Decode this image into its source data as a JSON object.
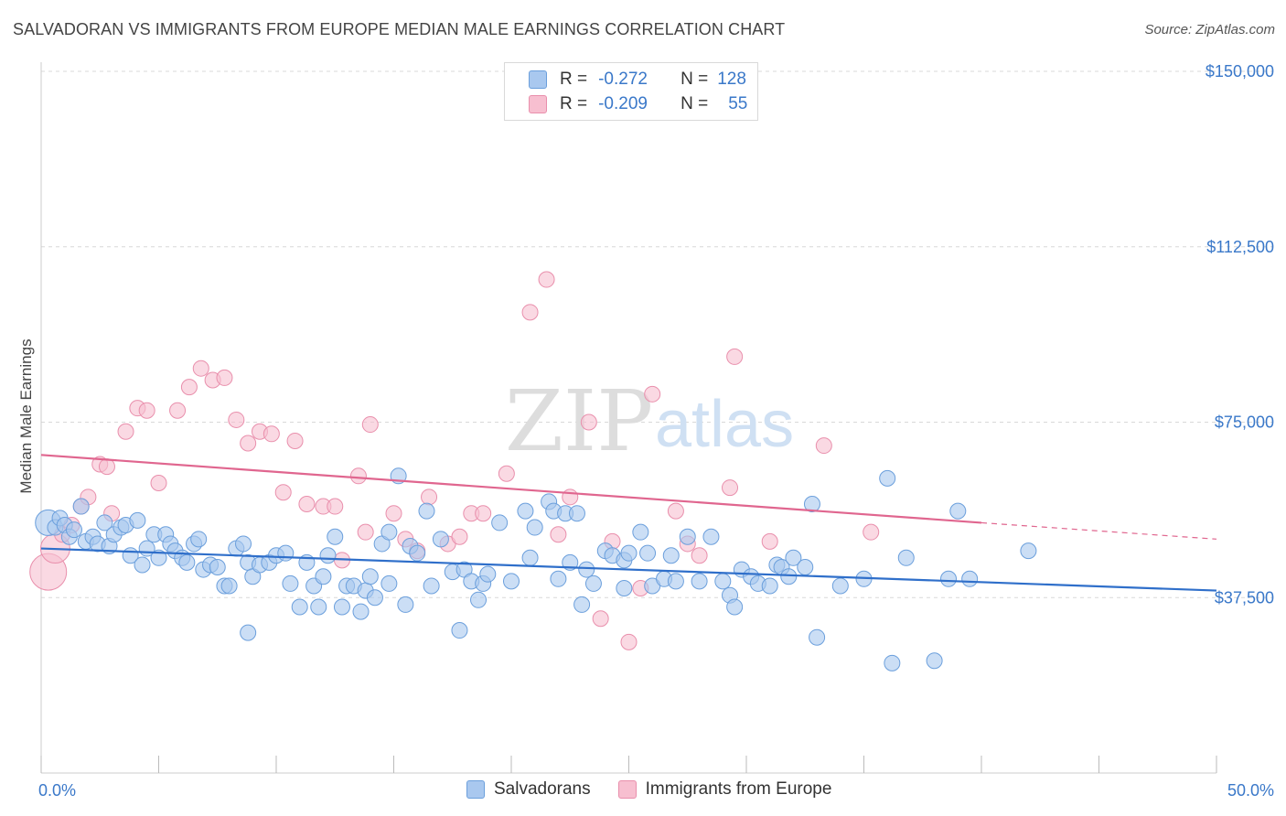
{
  "header": {
    "title": "SALVADORAN VS IMMIGRANTS FROM EUROPE MEDIAN MALE EARNINGS CORRELATION CHART",
    "source": "Source: ZipAtlas.com"
  },
  "legend": {
    "rows": [
      {
        "r_label": "R =",
        "r_value": "-0.272",
        "n_label": "N =",
        "n_value": "128"
      },
      {
        "r_label": "R =",
        "r_value": "-0.209",
        "n_label": "N =",
        "n_value": "55"
      }
    ]
  },
  "bottom_legend": {
    "items": [
      {
        "label": "Salvadorans"
      },
      {
        "label": "Immigrants from Europe"
      }
    ]
  },
  "watermark": {
    "zip": "ZIP",
    "atlas": "atlas"
  },
  "colors": {
    "blue_fill": "#a9c8ef",
    "blue_stroke": "#6b9fdc",
    "blue_line": "#2f6fca",
    "pink_fill": "#f7bfd0",
    "pink_stroke": "#e98fac",
    "pink_line": "#e0668f",
    "tick_text": "#3a78c9",
    "grid": "#d8d8d8"
  },
  "chart_data": {
    "type": "scatter",
    "title": "SALVADORAN VS IMMIGRANTS FROM EUROPE MEDIAN MALE EARNINGS CORRELATION CHART",
    "xlabel": "",
    "ylabel": "Median Male Earnings",
    "xlim": [
      0,
      50
    ],
    "ylim": [
      0,
      152000
    ],
    "x_tick_labels": [
      "0.0%",
      "50.0%"
    ],
    "y_ticks": [
      37500,
      75000,
      112500,
      150000
    ],
    "y_tick_labels": [
      "$37,500",
      "$75,000",
      "$112,500",
      "$150,000"
    ],
    "grid": true,
    "legend_position": "top-center",
    "series": [
      {
        "name": "Salvadorans",
        "color": "#a9c8ef",
        "trend": {
          "x": [
            0,
            50
          ],
          "y": [
            48000,
            39000
          ]
        },
        "points": [
          [
            0.3,
            53500
          ],
          [
            0.6,
            52500
          ],
          [
            0.8,
            54500
          ],
          [
            1.0,
            53000
          ],
          [
            1.2,
            50500
          ],
          [
            1.4,
            52000
          ],
          [
            1.7,
            57000
          ],
          [
            1.9,
            49500
          ],
          [
            2.2,
            50500
          ],
          [
            2.4,
            49000
          ],
          [
            2.7,
            53500
          ],
          [
            2.9,
            48500
          ],
          [
            3.1,
            51000
          ],
          [
            3.4,
            52500
          ],
          [
            3.6,
            53000
          ],
          [
            3.8,
            46500
          ],
          [
            4.1,
            54000
          ],
          [
            4.3,
            44500
          ],
          [
            4.5,
            48000
          ],
          [
            4.8,
            51000
          ],
          [
            5.0,
            46000
          ],
          [
            5.3,
            51000
          ],
          [
            5.5,
            49000
          ],
          [
            5.7,
            47500
          ],
          [
            6.0,
            46000
          ],
          [
            6.2,
            45000
          ],
          [
            6.5,
            49000
          ],
          [
            6.7,
            50000
          ],
          [
            6.9,
            43500
          ],
          [
            7.2,
            44500
          ],
          [
            7.5,
            44000
          ],
          [
            7.8,
            40000
          ],
          [
            8.0,
            40000
          ],
          [
            8.3,
            48000
          ],
          [
            8.6,
            49000
          ],
          [
            8.8,
            45000
          ],
          [
            8.8,
            30000
          ],
          [
            9.0,
            42000
          ],
          [
            9.3,
            44500
          ],
          [
            9.7,
            45000
          ],
          [
            10.0,
            46500
          ],
          [
            10.4,
            47000
          ],
          [
            10.6,
            40500
          ],
          [
            11.0,
            35500
          ],
          [
            11.3,
            45000
          ],
          [
            11.6,
            40000
          ],
          [
            11.8,
            35500
          ],
          [
            12.0,
            42000
          ],
          [
            12.2,
            46500
          ],
          [
            12.5,
            50500
          ],
          [
            12.8,
            35500
          ],
          [
            13.0,
            40000
          ],
          [
            13.3,
            40000
          ],
          [
            13.6,
            34500
          ],
          [
            13.8,
            39000
          ],
          [
            14.0,
            42000
          ],
          [
            14.2,
            37500
          ],
          [
            14.5,
            49000
          ],
          [
            14.8,
            51500
          ],
          [
            14.8,
            40500
          ],
          [
            15.2,
            63500
          ],
          [
            15.5,
            36000
          ],
          [
            15.7,
            48500
          ],
          [
            16.0,
            47000
          ],
          [
            16.4,
            56000
          ],
          [
            16.6,
            40000
          ],
          [
            17.0,
            50000
          ],
          [
            17.5,
            43000
          ],
          [
            17.8,
            30500
          ],
          [
            18.0,
            43500
          ],
          [
            18.3,
            41000
          ],
          [
            18.6,
            37000
          ],
          [
            18.8,
            40500
          ],
          [
            19.0,
            42500
          ],
          [
            19.5,
            53500
          ],
          [
            20.0,
            41000
          ],
          [
            20.6,
            56000
          ],
          [
            20.8,
            46000
          ],
          [
            21.0,
            52500
          ],
          [
            21.6,
            58000
          ],
          [
            21.8,
            56000
          ],
          [
            22.0,
            41500
          ],
          [
            22.3,
            55500
          ],
          [
            22.5,
            45000
          ],
          [
            22.8,
            55500
          ],
          [
            23.0,
            36000
          ],
          [
            23.2,
            43500
          ],
          [
            23.5,
            40500
          ],
          [
            24.0,
            47500
          ],
          [
            24.3,
            46500
          ],
          [
            24.8,
            45500
          ],
          [
            24.8,
            39500
          ],
          [
            25.0,
            47000
          ],
          [
            25.5,
            51500
          ],
          [
            25.8,
            47000
          ],
          [
            26.0,
            40000
          ],
          [
            26.5,
            41500
          ],
          [
            26.8,
            46500
          ],
          [
            27.0,
            41000
          ],
          [
            27.5,
            50500
          ],
          [
            28.0,
            41000
          ],
          [
            28.5,
            50500
          ],
          [
            29.0,
            41000
          ],
          [
            29.3,
            38000
          ],
          [
            29.5,
            35500
          ],
          [
            29.8,
            43500
          ],
          [
            30.2,
            42000
          ],
          [
            30.5,
            40500
          ],
          [
            31.0,
            40000
          ],
          [
            31.3,
            44500
          ],
          [
            31.5,
            44000
          ],
          [
            31.8,
            42000
          ],
          [
            32.0,
            46000
          ],
          [
            32.5,
            44000
          ],
          [
            33.0,
            29000
          ],
          [
            32.8,
            57500
          ],
          [
            34.0,
            40000
          ],
          [
            35.0,
            41500
          ],
          [
            36.0,
            63000
          ],
          [
            36.2,
            23500
          ],
          [
            36.8,
            46000
          ],
          [
            38.0,
            24000
          ],
          [
            38.6,
            41500
          ],
          [
            39.0,
            56000
          ],
          [
            39.5,
            41500
          ],
          [
            42.0,
            47500
          ]
        ]
      },
      {
        "name": "Immigrants from Europe",
        "color": "#f7bfd0",
        "trend": {
          "x": [
            0,
            40
          ],
          "y": [
            68000,
            53500
          ]
        },
        "trend_dashed": {
          "x": [
            40,
            50
          ],
          "y": [
            53500,
            50000
          ]
        },
        "points": [
          [
            0.3,
            43000
          ],
          [
            0.6,
            48000
          ],
          [
            0.9,
            51000
          ],
          [
            1.3,
            53000
          ],
          [
            1.7,
            57000
          ],
          [
            2.0,
            59000
          ],
          [
            2.5,
            66000
          ],
          [
            2.8,
            65500
          ],
          [
            3.0,
            55500
          ],
          [
            3.6,
            73000
          ],
          [
            4.1,
            78000
          ],
          [
            4.5,
            77500
          ],
          [
            5.0,
            62000
          ],
          [
            5.8,
            77500
          ],
          [
            6.3,
            82500
          ],
          [
            6.8,
            86500
          ],
          [
            7.3,
            84000
          ],
          [
            7.8,
            84500
          ],
          [
            8.3,
            75500
          ],
          [
            8.8,
            70500
          ],
          [
            9.3,
            73000
          ],
          [
            9.8,
            72500
          ],
          [
            10.3,
            60000
          ],
          [
            10.8,
            71000
          ],
          [
            11.3,
            57500
          ],
          [
            12.0,
            57000
          ],
          [
            12.5,
            57000
          ],
          [
            12.8,
            45500
          ],
          [
            13.5,
            63500
          ],
          [
            13.8,
            51500
          ],
          [
            14.0,
            74500
          ],
          [
            15.0,
            55500
          ],
          [
            15.5,
            50000
          ],
          [
            16.0,
            47500
          ],
          [
            16.5,
            59000
          ],
          [
            17.3,
            49000
          ],
          [
            17.8,
            50500
          ],
          [
            18.3,
            55500
          ],
          [
            18.8,
            55500
          ],
          [
            19.8,
            64000
          ],
          [
            20.8,
            98500
          ],
          [
            21.5,
            105500
          ],
          [
            22.0,
            51000
          ],
          [
            22.5,
            59000
          ],
          [
            23.3,
            75000
          ],
          [
            23.8,
            33000
          ],
          [
            24.3,
            49500
          ],
          [
            25.0,
            28000
          ],
          [
            25.5,
            39500
          ],
          [
            26.0,
            81000
          ],
          [
            27.0,
            56000
          ],
          [
            27.5,
            49000
          ],
          [
            28.0,
            46500
          ],
          [
            29.3,
            61000
          ],
          [
            29.5,
            89000
          ],
          [
            31.0,
            49500
          ],
          [
            33.3,
            70000
          ],
          [
            35.3,
            51500
          ]
        ]
      }
    ]
  }
}
